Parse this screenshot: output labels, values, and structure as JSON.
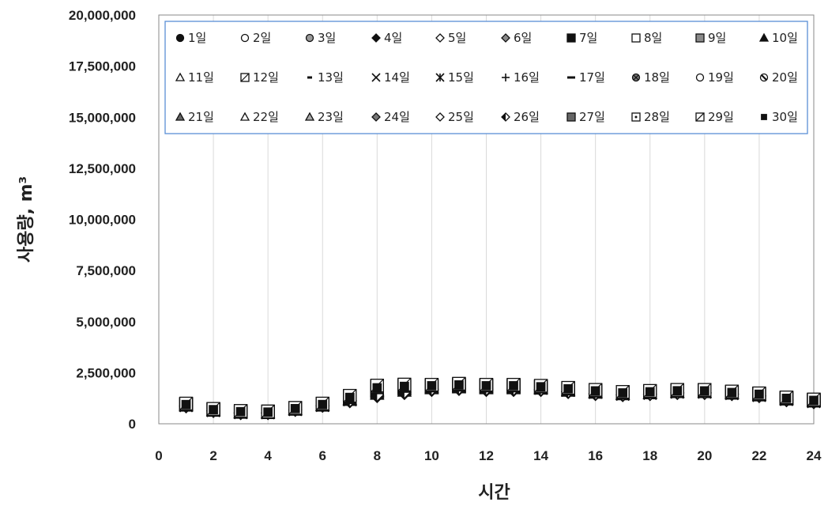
{
  "chart_data": {
    "type": "scatter",
    "xlabel": "시간",
    "ylabel": "사용량, m³",
    "xlim": [
      0,
      24
    ],
    "ylim": [
      0,
      20000000
    ],
    "x_ticks": [
      "0",
      "2",
      "4",
      "6",
      "8",
      "10",
      "12",
      "14",
      "16",
      "18",
      "20",
      "22",
      "24"
    ],
    "y_ticks": [
      "0",
      "2,500,000",
      "5,000,000",
      "7,500,000",
      "10,000,000",
      "12,500,000",
      "15,000,000",
      "17,500,000",
      "20,000,000"
    ],
    "grid": "vertical",
    "legend_position": "top",
    "x": [
      1,
      2,
      3,
      4,
      5,
      6,
      7,
      8,
      9,
      10,
      11,
      12,
      13,
      14,
      15,
      16,
      17,
      18,
      19,
      20,
      21,
      22,
      23,
      24
    ],
    "series": [
      {
        "name": "1일",
        "marker": "circle-filled",
        "values": [
          900000,
          650000,
          550000,
          550000,
          700000,
          900000,
          1200000,
          1600000,
          1750000,
          1800000,
          1850000,
          1800000,
          1800000,
          1750000,
          1650000,
          1550000,
          1450000,
          1500000,
          1550000,
          1550000,
          1500000,
          1400000,
          1200000,
          1100000
        ]
      },
      {
        "name": "2일",
        "marker": "circle-open",
        "values": [
          950000,
          700000,
          600000,
          580000,
          750000,
          950000,
          1300000,
          1700000,
          1800000,
          1850000,
          1900000,
          1850000,
          1850000,
          1800000,
          1700000,
          1600000,
          1500000,
          1550000,
          1600000,
          1600000,
          1500000,
          1450000,
          1250000,
          1150000
        ]
      },
      {
        "name": "3일",
        "marker": "circle-gray",
        "values": [
          920000,
          680000,
          570000,
          560000,
          720000,
          920000,
          1250000,
          1650000,
          1780000,
          1820000,
          1880000,
          1820000,
          1820000,
          1780000,
          1680000,
          1580000,
          1480000,
          1520000,
          1580000,
          1570000,
          1510000,
          1420000,
          1220000,
          1120000
        ]
      },
      {
        "name": "4일",
        "marker": "diamond-filled",
        "values": [
          850000,
          620000,
          520000,
          520000,
          680000,
          880000,
          1100000,
          1350000,
          1500000,
          1650000,
          1700000,
          1650000,
          1650000,
          1650000,
          1550000,
          1450000,
          1400000,
          1450000,
          1500000,
          1500000,
          1450000,
          1350000,
          1150000,
          1050000
        ]
      },
      {
        "name": "5일",
        "marker": "diamond-open",
        "values": [
          880000,
          640000,
          540000,
          540000,
          690000,
          890000,
          1150000,
          1400000,
          1550000,
          1700000,
          1750000,
          1700000,
          1700000,
          1680000,
          1580000,
          1480000,
          1420000,
          1460000,
          1520000,
          1520000,
          1460000,
          1370000,
          1170000,
          1070000
        ]
      },
      {
        "name": "6일",
        "marker": "diamond-gray",
        "values": [
          860000,
          630000,
          530000,
          530000,
          685000,
          885000,
          1120000,
          1380000,
          1520000,
          1670000,
          1720000,
          1680000,
          1680000,
          1660000,
          1560000,
          1460000,
          1410000,
          1455000,
          1510000,
          1510000,
          1455000,
          1360000,
          1160000,
          1060000
        ]
      },
      {
        "name": "7일",
        "marker": "square-filled",
        "values": [
          940000,
          690000,
          590000,
          570000,
          740000,
          940000,
          1280000,
          1750000,
          1820000,
          1850000,
          1900000,
          1860000,
          1860000,
          1800000,
          1700000,
          1600000,
          1500000,
          1560000,
          1610000,
          1600000,
          1520000,
          1440000,
          1240000,
          1140000
        ]
      },
      {
        "name": "8일",
        "marker": "square-open",
        "values": [
          980000,
          720000,
          620000,
          600000,
          770000,
          980000,
          1350000,
          1850000,
          1900000,
          1900000,
          1950000,
          1900000,
          1900000,
          1850000,
          1750000,
          1650000,
          1550000,
          1600000,
          1650000,
          1650000,
          1570000,
          1480000,
          1280000,
          1180000
        ]
      },
      {
        "name": "9일",
        "marker": "square-gray",
        "values": [
          960000,
          710000,
          610000,
          590000,
          760000,
          960000,
          1320000,
          1800000,
          1860000,
          1880000,
          1920000,
          1880000,
          1880000,
          1830000,
          1730000,
          1630000,
          1530000,
          1580000,
          1630000,
          1630000,
          1550000,
          1460000,
          1260000,
          1160000
        ]
      },
      {
        "name": "10일",
        "marker": "triangle-filled",
        "values": [
          870000,
          630000,
          530000,
          530000,
          690000,
          890000,
          1150000,
          1450000,
          1600000,
          1720000,
          1760000,
          1720000,
          1720000,
          1700000,
          1600000,
          1500000,
          1430000,
          1470000,
          1530000,
          1530000,
          1470000,
          1380000,
          1180000,
          1080000
        ]
      },
      {
        "name": "11일",
        "marker": "triangle-open",
        "values": [
          910000,
          660000,
          560000,
          550000,
          710000,
          910000,
          1220000,
          1600000,
          1720000,
          1790000,
          1830000,
          1790000,
          1790000,
          1760000,
          1660000,
          1560000,
          1470000,
          1510000,
          1570000,
          1560000,
          1500000,
          1410000,
          1210000,
          1110000
        ]
      },
      {
        "name": "12일",
        "marker": "square-slash",
        "values": [
          930000,
          680000,
          580000,
          565000,
          730000,
          930000,
          1260000,
          1680000,
          1790000,
          1830000,
          1870000,
          1830000,
          1830000,
          1790000,
          1690000,
          1590000,
          1490000,
          1540000,
          1590000,
          1590000,
          1520000,
          1430000,
          1230000,
          1130000
        ]
      },
      {
        "name": "13일",
        "marker": "dash",
        "values": [
          900000,
          660000,
          560000,
          550000,
          710000,
          905000,
          1200000,
          1580000,
          1720000,
          1780000,
          1820000,
          1780000,
          1780000,
          1750000,
          1650000,
          1550000,
          1460000,
          1500000,
          1560000,
          1560000,
          1490000,
          1400000,
          1200000,
          1100000
        ]
      },
      {
        "name": "14일",
        "marker": "x",
        "values": [
          890000,
          650000,
          550000,
          545000,
          700000,
          900000,
          1180000,
          1550000,
          1700000,
          1770000,
          1810000,
          1770000,
          1770000,
          1740000,
          1640000,
          1540000,
          1450000,
          1490000,
          1550000,
          1550000,
          1480000,
          1390000,
          1190000,
          1090000
        ]
      },
      {
        "name": "15일",
        "marker": "asterisk",
        "values": [
          895000,
          655000,
          555000,
          548000,
          705000,
          902000,
          1190000,
          1560000,
          1710000,
          1775000,
          1815000,
          1775000,
          1775000,
          1745000,
          1645000,
          1545000,
          1455000,
          1495000,
          1555000,
          1555000,
          1485000,
          1395000,
          1195000,
          1095000
        ]
      },
      {
        "name": "16일",
        "marker": "plus",
        "values": [
          905000,
          662000,
          562000,
          552000,
          712000,
          908000,
          1210000,
          1590000,
          1730000,
          1785000,
          1825000,
          1785000,
          1785000,
          1755000,
          1655000,
          1555000,
          1462000,
          1502000,
          1562000,
          1562000,
          1492000,
          1402000,
          1202000,
          1102000
        ]
      },
      {
        "name": "17일",
        "marker": "long-dash",
        "values": [
          915000,
          668000,
          568000,
          556000,
          718000,
          914000,
          1230000,
          1620000,
          1750000,
          1800000,
          1840000,
          1800000,
          1800000,
          1770000,
          1670000,
          1570000,
          1475000,
          1515000,
          1575000,
          1575000,
          1505000,
          1415000,
          1215000,
          1115000
        ]
      },
      {
        "name": "18일",
        "marker": "circle-cross",
        "values": [
          925000,
          675000,
          575000,
          560000,
          725000,
          925000,
          1245000,
          1640000,
          1765000,
          1810000,
          1855000,
          1810000,
          1810000,
          1780000,
          1680000,
          1580000,
          1485000,
          1525000,
          1585000,
          1580000,
          1510000,
          1420000,
          1220000,
          1120000
        ]
      },
      {
        "name": "19일",
        "marker": "circle-open",
        "values": [
          935000,
          685000,
          585000,
          568000,
          735000,
          935000,
          1265000,
          1665000,
          1780000,
          1825000,
          1870000,
          1825000,
          1825000,
          1790000,
          1690000,
          1590000,
          1495000,
          1535000,
          1595000,
          1590000,
          1515000,
          1430000,
          1230000,
          1130000
        ]
      },
      {
        "name": "20일",
        "marker": "circle-slash",
        "values": [
          945000,
          695000,
          595000,
          575000,
          745000,
          945000,
          1285000,
          1700000,
          1800000,
          1840000,
          1885000,
          1840000,
          1840000,
          1800000,
          1700000,
          1600000,
          1505000,
          1545000,
          1605000,
          1600000,
          1520000,
          1440000,
          1240000,
          1140000
        ]
      },
      {
        "name": "21일",
        "marker": "triangle-gray",
        "values": [
          875000,
          635000,
          535000,
          535000,
          692000,
          892000,
          1160000,
          1460000,
          1610000,
          1730000,
          1770000,
          1730000,
          1730000,
          1710000,
          1610000,
          1510000,
          1435000,
          1475000,
          1535000,
          1535000,
          1475000,
          1385000,
          1185000,
          1085000
        ]
      },
      {
        "name": "22일",
        "marker": "triangle-open",
        "values": [
          885000,
          642000,
          545000,
          542000,
          698000,
          898000,
          1175000,
          1520000,
          1660000,
          1750000,
          1790000,
          1750000,
          1750000,
          1725000,
          1625000,
          1525000,
          1445000,
          1485000,
          1545000,
          1545000,
          1480000,
          1390000,
          1190000,
          1090000
        ]
      },
      {
        "name": "23일",
        "marker": "triangle-hatch",
        "values": [
          895000,
          652000,
          552000,
          547000,
          703000,
          903000,
          1195000,
          1570000,
          1715000,
          1778000,
          1818000,
          1778000,
          1778000,
          1748000,
          1648000,
          1548000,
          1458000,
          1498000,
          1558000,
          1558000,
          1488000,
          1398000,
          1198000,
          1098000
        ]
      },
      {
        "name": "24일",
        "marker": "diamond-cross",
        "values": [
          865000,
          628000,
          528000,
          528000,
          683000,
          883000,
          1110000,
          1360000,
          1510000,
          1660000,
          1710000,
          1660000,
          1660000,
          1655000,
          1555000,
          1455000,
          1405000,
          1450000,
          1505000,
          1505000,
          1450000,
          1355000,
          1155000,
          1055000
        ]
      },
      {
        "name": "25일",
        "marker": "diamond-open",
        "values": [
          875000,
          636000,
          536000,
          536000,
          688000,
          888000,
          1130000,
          1390000,
          1530000,
          1680000,
          1730000,
          1690000,
          1690000,
          1670000,
          1570000,
          1470000,
          1415000,
          1458000,
          1515000,
          1515000,
          1458000,
          1365000,
          1165000,
          1065000
        ]
      },
      {
        "name": "26일",
        "marker": "diamond-half",
        "values": [
          882000,
          640000,
          540000,
          540000,
          692000,
          892000,
          1145000,
          1420000,
          1560000,
          1700000,
          1745000,
          1705000,
          1705000,
          1685000,
          1585000,
          1485000,
          1425000,
          1465000,
          1525000,
          1525000,
          1465000,
          1375000,
          1175000,
          1075000
        ]
      },
      {
        "name": "27일",
        "marker": "square-hatch",
        "values": [
          950000,
          700000,
          600000,
          580000,
          750000,
          950000,
          1300000,
          1780000,
          1850000,
          1870000,
          1910000,
          1870000,
          1870000,
          1820000,
          1720000,
          1620000,
          1520000,
          1570000,
          1620000,
          1620000,
          1540000,
          1450000,
          1250000,
          1150000
        ]
      },
      {
        "name": "28일",
        "marker": "square-dot",
        "values": [
          970000,
          715000,
          615000,
          595000,
          765000,
          970000,
          1335000,
          1820000,
          1880000,
          1890000,
          1935000,
          1890000,
          1890000,
          1840000,
          1740000,
          1640000,
          1540000,
          1590000,
          1640000,
          1640000,
          1560000,
          1470000,
          1270000,
          1170000
        ]
      },
      {
        "name": "29일",
        "marker": "square-slash",
        "values": [
          990000,
          730000,
          630000,
          605000,
          780000,
          990000,
          1370000,
          1870000,
          1920000,
          1910000,
          1960000,
          1910000,
          1910000,
          1860000,
          1760000,
          1660000,
          1560000,
          1610000,
          1660000,
          1660000,
          1580000,
          1490000,
          1290000,
          1190000
        ]
      },
      {
        "name": "30일",
        "marker": "square-small",
        "values": [
          940000,
          692000,
          592000,
          572000,
          742000,
          942000,
          1290000,
          1760000,
          1830000,
          1860000,
          1900000,
          1860000,
          1860000,
          1810000,
          1710000,
          1610000,
          1510000,
          1565000,
          1615000,
          1610000,
          1530000,
          1445000,
          1245000,
          1145000
        ]
      }
    ]
  }
}
